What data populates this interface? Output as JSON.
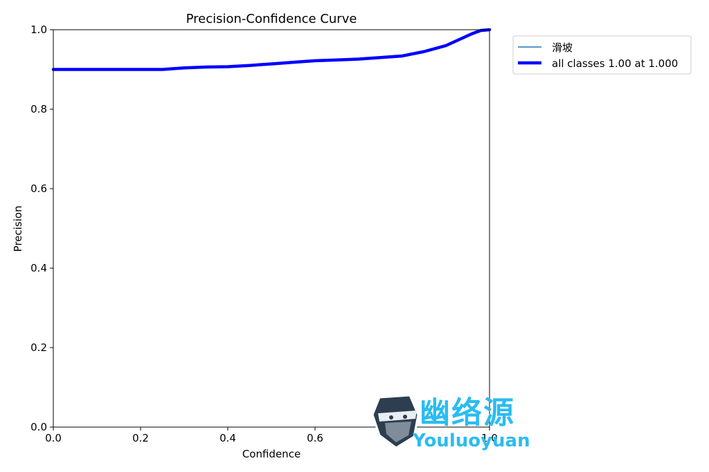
{
  "chart_data": {
    "type": "line",
    "title": "Precision-Confidence Curve",
    "xlabel": "Confidence",
    "ylabel": "Precision",
    "xlim": [
      0,
      1
    ],
    "ylim": [
      0,
      1
    ],
    "xticks": [
      "0.0",
      "0.2",
      "0.4",
      "0.6",
      "0.8",
      "1.0"
    ],
    "yticks": [
      "0.0",
      "0.2",
      "0.4",
      "0.6",
      "0.8",
      "1.0"
    ],
    "grid": false,
    "legend_position": "outside top-right",
    "series": [
      {
        "name": "滑坡",
        "color": "#1f77b4",
        "line_width": "thin",
        "x": [
          0.0,
          0.05,
          0.1,
          0.15,
          0.2,
          0.25,
          0.3,
          0.35,
          0.4,
          0.45,
          0.5,
          0.55,
          0.6,
          0.65,
          0.7,
          0.75,
          0.8,
          0.85,
          0.9,
          0.93,
          0.96,
          0.98,
          1.0
        ],
        "y": [
          0.9,
          0.9,
          0.9,
          0.9,
          0.9,
          0.9,
          0.904,
          0.906,
          0.907,
          0.91,
          0.914,
          0.918,
          0.922,
          0.924,
          0.926,
          0.93,
          0.934,
          0.945,
          0.96,
          0.975,
          0.99,
          0.998,
          1.0
        ]
      },
      {
        "name": "all classes 1.00 at 1.000",
        "color": "#0000ff",
        "line_width": "thick",
        "x": [
          0.0,
          0.05,
          0.1,
          0.15,
          0.2,
          0.25,
          0.3,
          0.35,
          0.4,
          0.45,
          0.5,
          0.55,
          0.6,
          0.65,
          0.7,
          0.75,
          0.8,
          0.85,
          0.9,
          0.93,
          0.96,
          0.98,
          1.0
        ],
        "y": [
          0.9,
          0.9,
          0.9,
          0.9,
          0.9,
          0.9,
          0.904,
          0.906,
          0.907,
          0.91,
          0.914,
          0.918,
          0.922,
          0.924,
          0.926,
          0.93,
          0.934,
          0.945,
          0.96,
          0.975,
          0.99,
          0.998,
          1.0
        ]
      }
    ]
  },
  "watermark": {
    "text_cn": "幽络源",
    "text_en": "Youluoyuan",
    "color": "#2bbcf0",
    "icon": "ninja-logo-icon"
  }
}
